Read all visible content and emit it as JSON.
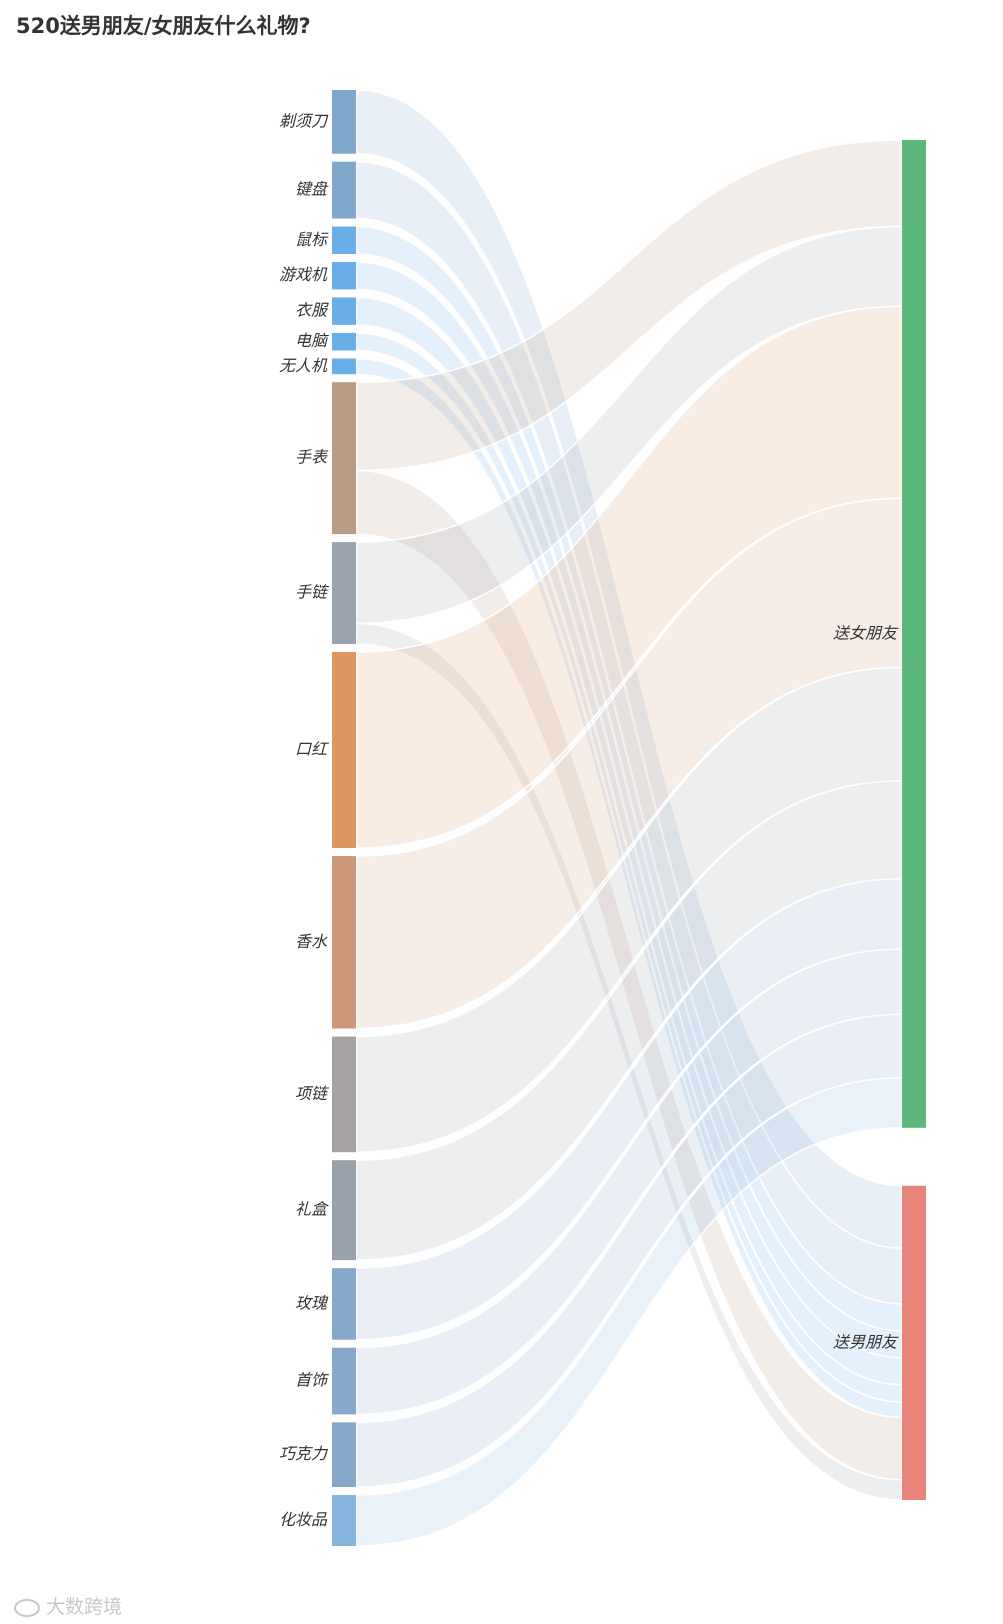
{
  "chart_data": {
    "type": "sankey",
    "title": "520送男朋友/女朋友什么礼物?",
    "sources": [
      {
        "name": "剃须刀",
        "value": 65,
        "color": "#7fa7cc"
      },
      {
        "name": "键盘",
        "value": 58,
        "color": "#7fa7cc"
      },
      {
        "name": "鼠标",
        "value": 28,
        "color": "#6aaee8"
      },
      {
        "name": "游戏机",
        "value": 28,
        "color": "#6aaee8"
      },
      {
        "name": "衣服",
        "value": 28,
        "color": "#6aaee8"
      },
      {
        "name": "电脑",
        "value": 18,
        "color": "#6aaee8"
      },
      {
        "name": "无人机",
        "value": 16,
        "color": "#6aaee8"
      },
      {
        "name": "手表",
        "value": 155,
        "color": "#b89b84"
      },
      {
        "name": "手链",
        "value": 104,
        "color": "#9aa3ad"
      },
      {
        "name": "口红",
        "value": 200,
        "color": "#dd9562"
      },
      {
        "name": "香水",
        "value": 176,
        "color": "#cc9978"
      },
      {
        "name": "项链",
        "value": 118,
        "color": "#a5a2a1"
      },
      {
        "name": "礼盒",
        "value": 102,
        "color": "#99a1ac"
      },
      {
        "name": "玫瑰",
        "value": 73,
        "color": "#86a8ca"
      },
      {
        "name": "首饰",
        "value": 68,
        "color": "#86a8ca"
      },
      {
        "name": "巧克力",
        "value": 66,
        "color": "#86a8ca"
      },
      {
        "name": "化妆品",
        "value": 52,
        "color": "#84b3dc"
      }
    ],
    "targets": [
      {
        "name": "送女朋友",
        "color": "#5cb87a"
      },
      {
        "name": "送男朋友",
        "color": "#e8847a"
      }
    ],
    "links": [
      {
        "source": "剃须刀",
        "target": "送男朋友",
        "value": 65
      },
      {
        "source": "键盘",
        "target": "送男朋友",
        "value": 58
      },
      {
        "source": "鼠标",
        "target": "送男朋友",
        "value": 28
      },
      {
        "source": "游戏机",
        "target": "送男朋友",
        "value": 28
      },
      {
        "source": "衣服",
        "target": "送男朋友",
        "value": 28
      },
      {
        "source": "电脑",
        "target": "送男朋友",
        "value": 18
      },
      {
        "source": "无人机",
        "target": "送男朋友",
        "value": 16
      },
      {
        "source": "手表",
        "target": "送女朋友",
        "value": 90
      },
      {
        "source": "手表",
        "target": "送男朋友",
        "value": 65
      },
      {
        "source": "手链",
        "target": "送女朋友",
        "value": 83
      },
      {
        "source": "手链",
        "target": "送男朋友",
        "value": 21
      },
      {
        "source": "口红",
        "target": "送女朋友",
        "value": 200
      },
      {
        "source": "香水",
        "target": "送女朋友",
        "value": 176
      },
      {
        "source": "项链",
        "target": "送女朋友",
        "value": 118
      },
      {
        "source": "礼盒",
        "target": "送女朋友",
        "value": 102
      },
      {
        "source": "玫瑰",
        "target": "送女朋友",
        "value": 73
      },
      {
        "source": "首饰",
        "target": "送女朋友",
        "value": 68
      },
      {
        "source": "巧克力",
        "target": "送女朋友",
        "value": 66
      },
      {
        "source": "化妆品",
        "target": "送女朋友",
        "value": 52
      }
    ]
  },
  "watermark": {
    "text": "大数跨境",
    "icon": "logo-icon"
  }
}
